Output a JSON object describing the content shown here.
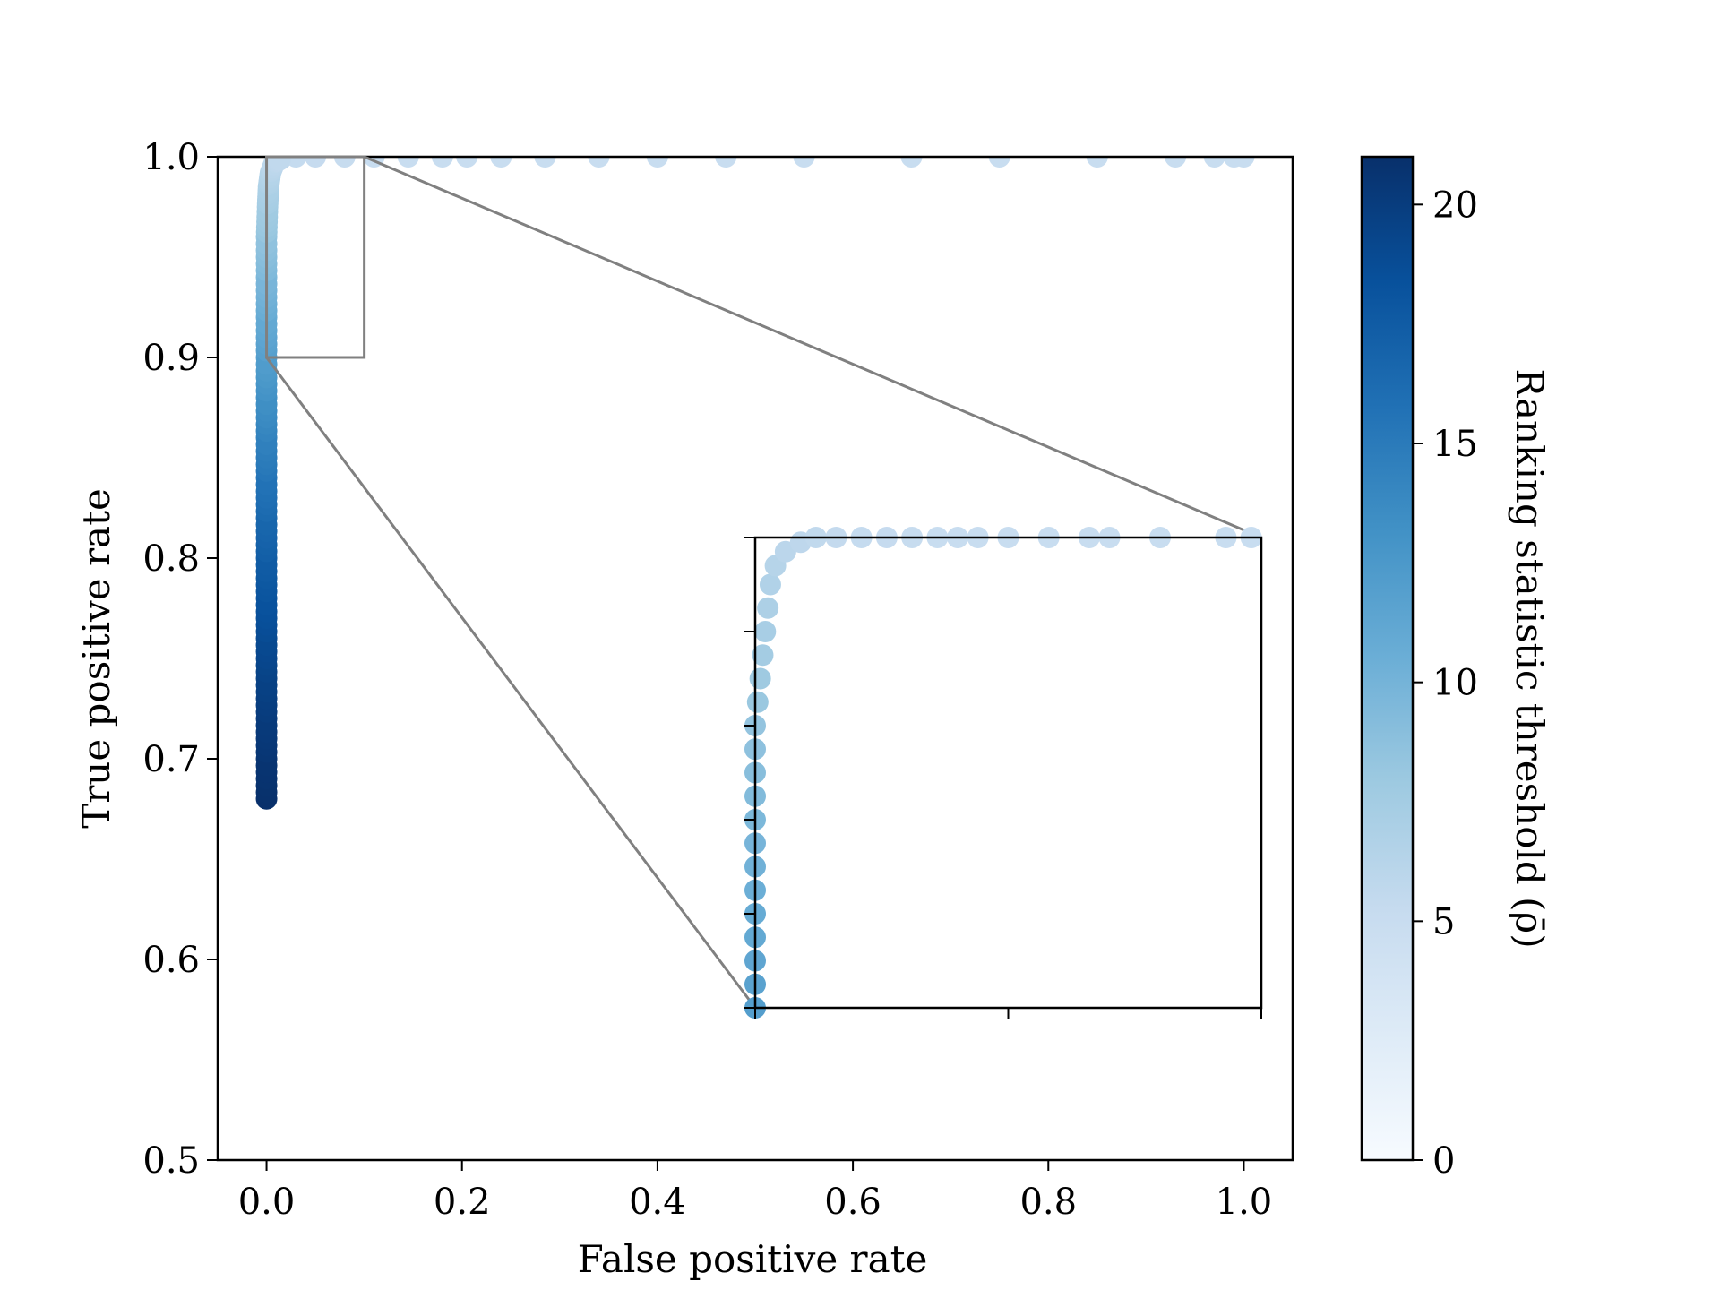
{
  "chart_data": {
    "type": "scatter",
    "title": "",
    "xlabel": "False positive rate",
    "ylabel": "True positive rate",
    "xlim": [
      -0.05,
      1.05
    ],
    "ylim": [
      0.5,
      1.0
    ],
    "xticks": [
      "0.0",
      "0.2",
      "0.4",
      "0.6",
      "0.8",
      "1.0"
    ],
    "yticks": [
      "0.5",
      "0.6",
      "0.7",
      "0.8",
      "0.9",
      "1.0"
    ],
    "colorbar": {
      "label": "Ranking statistic threshold (ρ̄)",
      "range": [
        0,
        21
      ],
      "ticks": [
        "0",
        "5",
        "10",
        "15",
        "20"
      ],
      "colormap": "Blues"
    },
    "curve": {
      "color_encodes": "threshold",
      "points": [
        {
          "x": 0.0,
          "y": 0.68,
          "t": 21.0
        },
        {
          "x": 0.0,
          "y": 0.7,
          "t": 20.6
        },
        {
          "x": 0.0,
          "y": 0.72,
          "t": 20.1
        },
        {
          "x": 0.0,
          "y": 0.74,
          "t": 19.6
        },
        {
          "x": 0.0,
          "y": 0.76,
          "t": 18.9
        },
        {
          "x": 0.0,
          "y": 0.78,
          "t": 18.2
        },
        {
          "x": 0.0,
          "y": 0.8,
          "t": 17.4
        },
        {
          "x": 0.0,
          "y": 0.82,
          "t": 16.5
        },
        {
          "x": 0.0,
          "y": 0.84,
          "t": 15.5
        },
        {
          "x": 0.0,
          "y": 0.86,
          "t": 14.4
        },
        {
          "x": 0.0,
          "y": 0.88,
          "t": 13.2
        },
        {
          "x": 0.0,
          "y": 0.9,
          "t": 12.0
        },
        {
          "x": 0.0,
          "y": 0.92,
          "t": 10.8
        },
        {
          "x": 0.0,
          "y": 0.94,
          "t": 9.6
        },
        {
          "x": 0.0,
          "y": 0.96,
          "t": 8.4
        },
        {
          "x": 0.001,
          "y": 0.975,
          "t": 7.5
        },
        {
          "x": 0.002,
          "y": 0.985,
          "t": 6.9
        },
        {
          "x": 0.004,
          "y": 0.992,
          "t": 6.3
        },
        {
          "x": 0.008,
          "y": 0.997,
          "t": 5.8
        },
        {
          "x": 0.015,
          "y": 0.999,
          "t": 5.5
        },
        {
          "x": 0.03,
          "y": 1.0,
          "t": 5.3
        },
        {
          "x": 0.05,
          "y": 1.0,
          "t": 5.2
        },
        {
          "x": 0.08,
          "y": 1.0,
          "t": 5.1
        },
        {
          "x": 0.11,
          "y": 1.0,
          "t": 5.0
        },
        {
          "x": 0.145,
          "y": 1.0,
          "t": 5.0
        },
        {
          "x": 0.18,
          "y": 1.0,
          "t": 5.0
        },
        {
          "x": 0.205,
          "y": 1.0,
          "t": 5.0
        },
        {
          "x": 0.24,
          "y": 1.0,
          "t": 5.0
        },
        {
          "x": 0.285,
          "y": 1.0,
          "t": 5.0
        },
        {
          "x": 0.34,
          "y": 1.0,
          "t": 5.0
        },
        {
          "x": 0.4,
          "y": 1.0,
          "t": 5.0
        },
        {
          "x": 0.47,
          "y": 1.0,
          "t": 5.0
        },
        {
          "x": 0.55,
          "y": 1.0,
          "t": 5.0
        },
        {
          "x": 0.66,
          "y": 1.0,
          "t": 5.0
        },
        {
          "x": 0.75,
          "y": 1.0,
          "t": 5.0
        },
        {
          "x": 0.85,
          "y": 1.0,
          "t": 5.0
        },
        {
          "x": 0.93,
          "y": 1.0,
          "t": 5.0
        },
        {
          "x": 0.97,
          "y": 1.0,
          "t": 5.0
        },
        {
          "x": 0.99,
          "y": 1.0,
          "t": 5.0
        },
        {
          "x": 1.0,
          "y": 1.0,
          "t": 5.0
        }
      ]
    },
    "inset": {
      "xlim": [
        0.0,
        0.1
      ],
      "ylim": [
        0.9,
        1.0
      ],
      "points": [
        {
          "x": 0.0,
          "y": 0.9,
          "t": 12.0
        },
        {
          "x": 0.0,
          "y": 0.905,
          "t": 11.6
        },
        {
          "x": 0.0,
          "y": 0.91,
          "t": 11.3
        },
        {
          "x": 0.0,
          "y": 0.915,
          "t": 11.0
        },
        {
          "x": 0.0,
          "y": 0.92,
          "t": 10.8
        },
        {
          "x": 0.0,
          "y": 0.925,
          "t": 10.5
        },
        {
          "x": 0.0,
          "y": 0.93,
          "t": 10.2
        },
        {
          "x": 0.0,
          "y": 0.935,
          "t": 9.9
        },
        {
          "x": 0.0,
          "y": 0.94,
          "t": 9.6
        },
        {
          "x": 0.0,
          "y": 0.945,
          "t": 9.3
        },
        {
          "x": 0.0,
          "y": 0.95,
          "t": 9.0
        },
        {
          "x": 0.0,
          "y": 0.955,
          "t": 8.7
        },
        {
          "x": 0.0,
          "y": 0.96,
          "t": 8.4
        },
        {
          "x": 0.0005,
          "y": 0.965,
          "t": 8.1
        },
        {
          "x": 0.001,
          "y": 0.97,
          "t": 7.8
        },
        {
          "x": 0.0015,
          "y": 0.975,
          "t": 7.5
        },
        {
          "x": 0.002,
          "y": 0.98,
          "t": 7.2
        },
        {
          "x": 0.0025,
          "y": 0.985,
          "t": 6.9
        },
        {
          "x": 0.003,
          "y": 0.99,
          "t": 6.6
        },
        {
          "x": 0.004,
          "y": 0.994,
          "t": 6.3
        },
        {
          "x": 0.006,
          "y": 0.997,
          "t": 6.0
        },
        {
          "x": 0.009,
          "y": 0.999,
          "t": 5.8
        },
        {
          "x": 0.012,
          "y": 1.0,
          "t": 5.6
        },
        {
          "x": 0.016,
          "y": 1.0,
          "t": 5.4
        },
        {
          "x": 0.021,
          "y": 1.0,
          "t": 5.3
        },
        {
          "x": 0.026,
          "y": 1.0,
          "t": 5.2
        },
        {
          "x": 0.031,
          "y": 1.0,
          "t": 5.1
        },
        {
          "x": 0.036,
          "y": 1.0,
          "t": 5.0
        },
        {
          "x": 0.04,
          "y": 1.0,
          "t": 5.0
        },
        {
          "x": 0.044,
          "y": 1.0,
          "t": 5.0
        },
        {
          "x": 0.05,
          "y": 1.0,
          "t": 5.0
        },
        {
          "x": 0.058,
          "y": 1.0,
          "t": 5.0
        },
        {
          "x": 0.066,
          "y": 1.0,
          "t": 5.0
        },
        {
          "x": 0.07,
          "y": 1.0,
          "t": 5.0
        },
        {
          "x": 0.08,
          "y": 1.0,
          "t": 5.0
        },
        {
          "x": 0.093,
          "y": 1.0,
          "t": 5.0
        },
        {
          "x": 0.098,
          "y": 1.0,
          "t": 5.0
        }
      ]
    }
  }
}
